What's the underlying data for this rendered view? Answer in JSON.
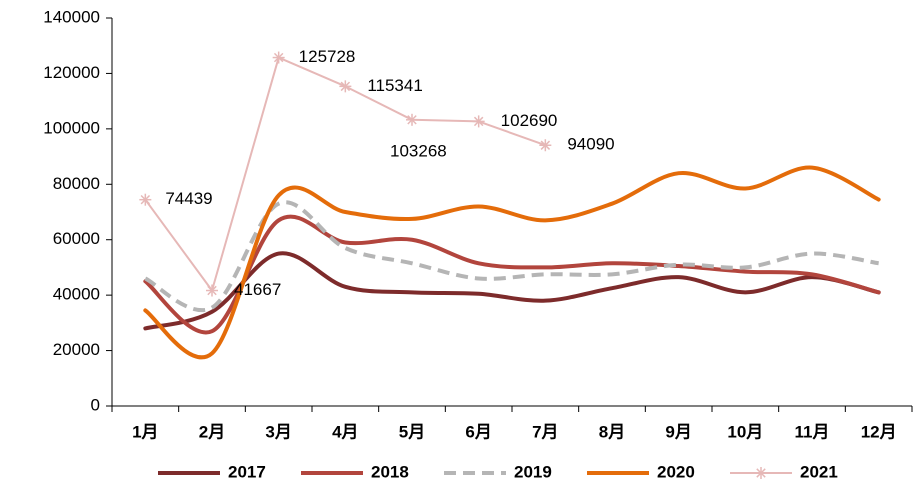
{
  "chart_data": {
    "type": "line",
    "categories": [
      "1月",
      "2月",
      "3月",
      "4月",
      "5月",
      "6月",
      "7月",
      "8月",
      "9月",
      "10月",
      "11月",
      "12月"
    ],
    "ylim": [
      0,
      140000
    ],
    "yticks": [
      0,
      20000,
      40000,
      60000,
      80000,
      100000,
      120000,
      140000
    ],
    "legend": "bottom",
    "series": [
      {
        "name": "2017",
        "color": "#7d2b2b",
        "smooth": true,
        "values": [
          28000,
          34000,
          55000,
          43000,
          41000,
          40500,
          38000,
          42500,
          46500,
          41000,
          46500,
          41000
        ]
      },
      {
        "name": "2018",
        "color": "#b2453d",
        "smooth": true,
        "values": [
          45000,
          27000,
          67000,
          59000,
          60000,
          51500,
          50000,
          51500,
          50500,
          48500,
          47500,
          41000
        ]
      },
      {
        "name": "2019",
        "color": "#b5b5b5",
        "smooth": true,
        "dashed": true,
        "values": [
          46000,
          35500,
          73000,
          57000,
          51500,
          46000,
          47500,
          47500,
          51000,
          50000,
          55000,
          51500
        ]
      },
      {
        "name": "2020",
        "color": "#e46c0a",
        "smooth": true,
        "values": [
          34500,
          19000,
          76000,
          70000,
          67500,
          72000,
          67000,
          73000,
          84000,
          78500,
          86000,
          74500
        ]
      },
      {
        "name": "2021",
        "color": "#e6b8b7",
        "smooth": false,
        "marker": "asterisk",
        "data_labels": true,
        "values": [
          74439,
          41667,
          125728,
          115341,
          103268,
          102690,
          94090,
          null,
          null,
          null,
          null,
          null
        ]
      }
    ]
  }
}
